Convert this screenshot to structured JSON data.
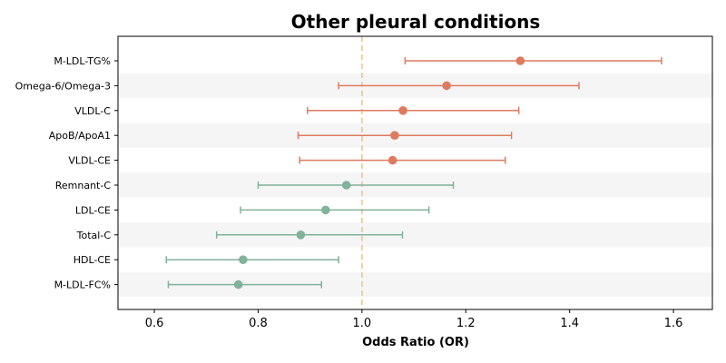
{
  "chart_data": {
    "type": "forest",
    "title": "Other pleural conditions",
    "xlabel": "Odds Ratio (OR)",
    "xlim": [
      0.53,
      1.675
    ],
    "xticks": [
      "0.6",
      "0.8",
      "1.0",
      "1.2",
      "1.4",
      "1.6"
    ],
    "reference_line": 1.0,
    "colors": {
      "risk": "#E07A5F",
      "protective": "#81B29A",
      "reference": "#F2C48D",
      "band": "#F5F5F5"
    },
    "rows": [
      {
        "label": "M-LDL-TG%",
        "or": 1.305,
        "lower": 1.083,
        "upper": 1.577,
        "group": "risk"
      },
      {
        "label": "Omega-6/Omega-3",
        "or": 1.163,
        "lower": 0.955,
        "upper": 1.418,
        "group": "risk"
      },
      {
        "label": "VLDL-C",
        "or": 1.079,
        "lower": 0.895,
        "upper": 1.302,
        "group": "risk"
      },
      {
        "label": "ApoB/ApoA1",
        "or": 1.063,
        "lower": 0.877,
        "upper": 1.288,
        "group": "risk"
      },
      {
        "label": "VLDL-CE",
        "or": 1.059,
        "lower": 0.88,
        "upper": 1.276,
        "group": "risk"
      },
      {
        "label": "Remnant-C",
        "or": 0.97,
        "lower": 0.8,
        "upper": 1.176,
        "group": "protective"
      },
      {
        "label": "LDL-CE",
        "or": 0.93,
        "lower": 0.766,
        "upper": 1.129,
        "group": "protective"
      },
      {
        "label": "Total-C",
        "or": 0.882,
        "lower": 0.72,
        "upper": 1.078,
        "group": "protective"
      },
      {
        "label": "HDL-CE",
        "or": 0.771,
        "lower": 0.623,
        "upper": 0.955,
        "group": "protective"
      },
      {
        "label": "M-LDL-FC%",
        "or": 0.762,
        "lower": 0.627,
        "upper": 0.922,
        "group": "protective"
      }
    ]
  }
}
